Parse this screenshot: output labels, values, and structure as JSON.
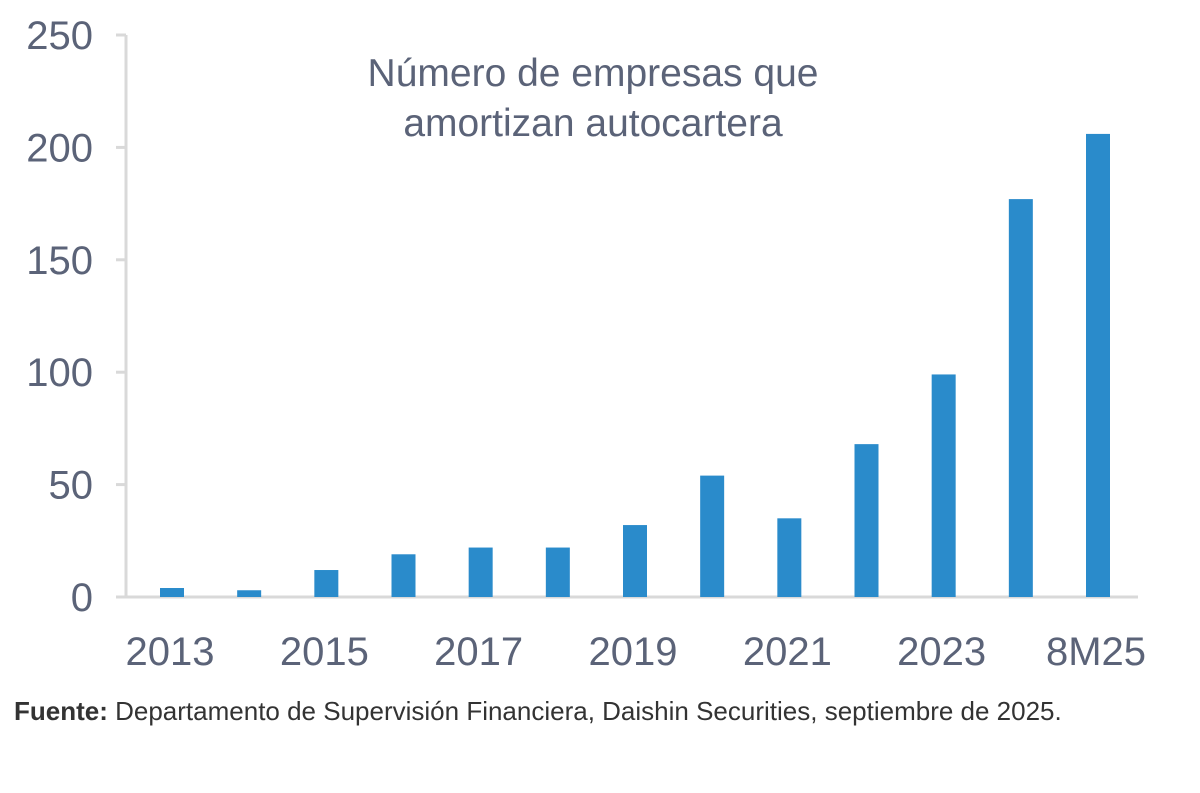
{
  "chart_data": {
    "type": "bar",
    "title_lines": [
      "Número de empresas que",
      "amortizan autocartera"
    ],
    "categories": [
      "2013",
      "2014",
      "2015",
      "2016",
      "2017",
      "2018",
      "2019",
      "2020",
      "2021",
      "2022",
      "2023",
      "2024",
      "8M25"
    ],
    "x_tick_labels": [
      "2013",
      "2015",
      "2017",
      "2019",
      "2021",
      "2023",
      "8M25"
    ],
    "values": [
      4,
      3,
      12,
      19,
      22,
      22,
      32,
      54,
      35,
      68,
      99,
      177,
      206
    ],
    "ylim": [
      0,
      250
    ],
    "y_ticks": [
      0,
      50,
      100,
      150,
      200,
      250
    ],
    "xlabel": "",
    "ylabel": "",
    "grid": false,
    "legend": "none",
    "bar_color": "#2a8bcb"
  },
  "source": {
    "label": "Fuente:",
    "text": " Departamento de Supervisión Financiera, Daishin Securities, septiembre de 2025."
  }
}
